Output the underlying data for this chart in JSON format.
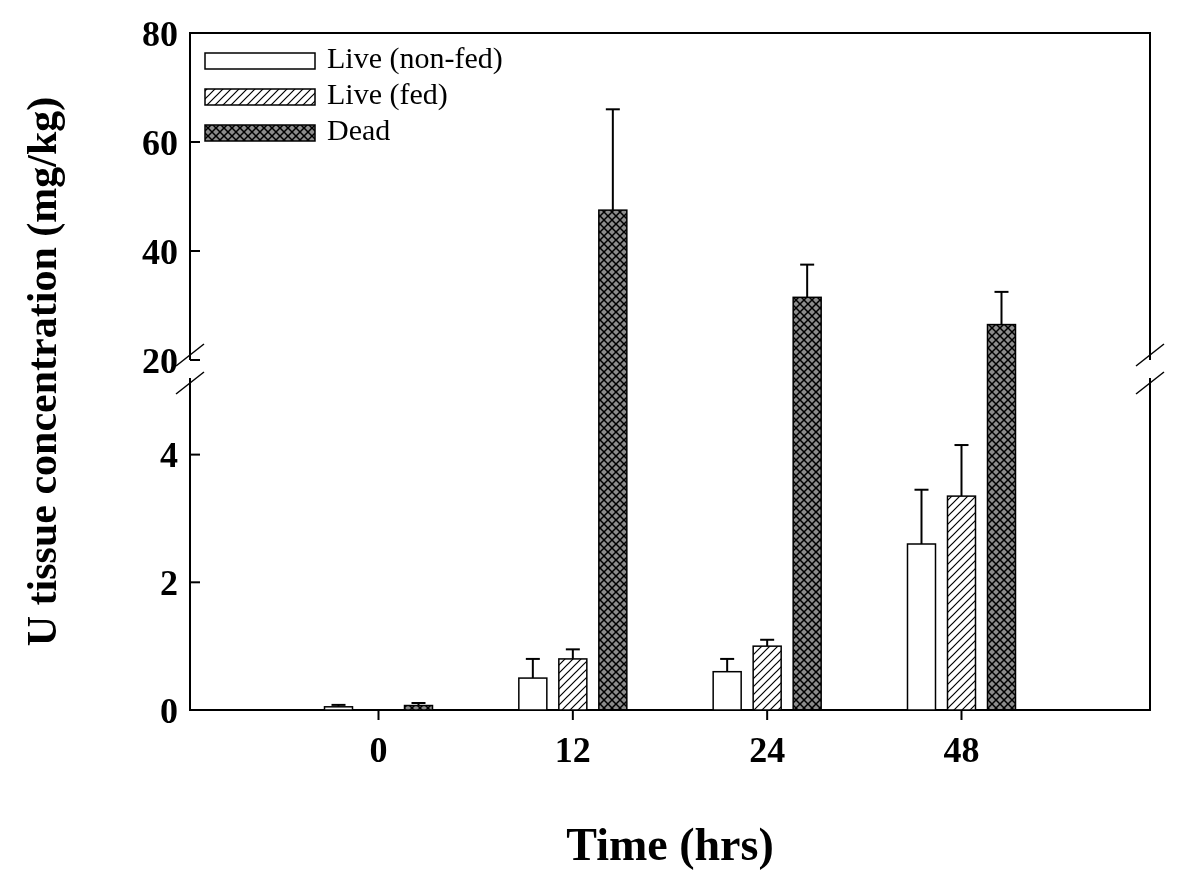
{
  "chart_data": [
    {
      "type": "bar",
      "ylabel": "U tissue concentration (mg/kg)",
      "categories": [
        "0",
        "12",
        "24",
        "48"
      ],
      "ylim": [
        20,
        80
      ],
      "yticks": [
        20,
        40,
        60,
        80
      ],
      "tick_labels": "y",
      "legend": "top left",
      "series": [
        {
          "name": "Live (non-fed)",
          "color": "#ffffff",
          "values": [
            null,
            null,
            null,
            null
          ]
        },
        {
          "name": "Live (fed)",
          "color": "#ffffff",
          "values": [
            null,
            null,
            null,
            null
          ]
        },
        {
          "name": "Dead",
          "color": "#8c8c8c",
          "values": [
            null,
            47.5,
            31.5,
            26.5
          ],
          "errors": [
            null,
            [
              47.5,
              66
            ],
            [
              31.5,
              37.5
            ],
            [
              26.5,
              32.5
            ]
          ]
        }
      ]
    },
    {
      "type": "bar",
      "xlabel": "Time (hrs)",
      "categories": [
        "0",
        "12",
        "24",
        "48"
      ],
      "ylim": [
        0,
        5.2
      ],
      "yticks": [
        0,
        2,
        4
      ],
      "series": [
        {
          "color": "#ffffff",
          "values": [
            0.05,
            0.5,
            0.6,
            2.6
          ],
          "errors": [
            [
              0.05,
              0.08
            ],
            [
              0.5,
              0.8
            ],
            [
              0.6,
              0.8
            ],
            [
              2.6,
              3.45
            ]
          ]
        },
        {
          "color": "#ffffff",
          "values": [
            0,
            0.8,
            1.0,
            3.35
          ],
          "errors": [
            null,
            [
              0.8,
              0.95
            ],
            [
              1.0,
              1.1
            ],
            [
              3.35,
              4.15
            ]
          ]
        },
        {
          "color": "#8c8c8c",
          "values": [
            0.07,
            null,
            null,
            null
          ],
          "errors": [
            [
              0.07,
              0.11
            ],
            null,
            null,
            null
          ]
        }
      ]
    }
  ]
}
